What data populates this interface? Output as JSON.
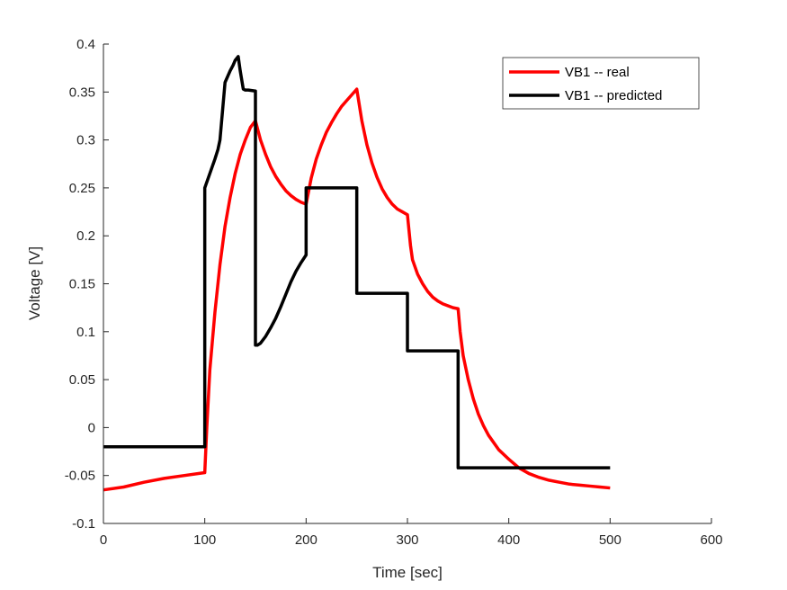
{
  "chart_data": {
    "type": "line",
    "xlabel": "Time [sec]",
    "ylabel": "Voltage [V]",
    "xlim": [
      0,
      600
    ],
    "ylim": [
      -0.1,
      0.4
    ],
    "xticks": [
      0,
      100,
      200,
      300,
      400,
      500,
      600
    ],
    "xtick_labels": [
      "0",
      "100",
      "200",
      "300",
      "400",
      "500",
      "600"
    ],
    "yticks": [
      -0.1,
      -0.05,
      0,
      0.05,
      0.1,
      0.15,
      0.2,
      0.25,
      0.3,
      0.35,
      0.4
    ],
    "ytick_labels": [
      "-0.1",
      "-0.05",
      "0",
      "0.05",
      "0.1",
      "0.15",
      "0.2",
      "0.25",
      "0.3",
      "0.35",
      "0.4"
    ],
    "grid": false,
    "legend_position": "top-right",
    "series": [
      {
        "name": "VB1 -- real",
        "color": "#ff0000",
        "x": [
          0,
          20,
          40,
          60,
          80,
          100,
          102,
          105,
          110,
          115,
          120,
          125,
          130,
          135,
          140,
          145,
          150,
          155,
          160,
          165,
          170,
          175,
          180,
          185,
          190,
          195,
          200,
          205,
          210,
          215,
          220,
          225,
          230,
          235,
          240,
          245,
          250,
          255,
          260,
          265,
          270,
          275,
          280,
          285,
          290,
          295,
          300,
          303,
          305,
          310,
          315,
          320,
          325,
          330,
          335,
          340,
          345,
          350,
          352,
          355,
          360,
          365,
          370,
          375,
          380,
          390,
          400,
          410,
          420,
          430,
          440,
          450,
          460,
          470,
          480,
          490,
          500
        ],
        "y": [
          -0.065,
          -0.062,
          -0.057,
          -0.053,
          -0.05,
          -0.047,
          0.0,
          0.06,
          0.12,
          0.17,
          0.21,
          0.24,
          0.265,
          0.285,
          0.3,
          0.313,
          0.32,
          0.3,
          0.285,
          0.272,
          0.262,
          0.254,
          0.247,
          0.242,
          0.238,
          0.235,
          0.233,
          0.26,
          0.28,
          0.295,
          0.308,
          0.318,
          0.327,
          0.335,
          0.341,
          0.347,
          0.353,
          0.32,
          0.295,
          0.276,
          0.261,
          0.249,
          0.24,
          0.233,
          0.228,
          0.225,
          0.222,
          0.19,
          0.175,
          0.16,
          0.15,
          0.142,
          0.136,
          0.132,
          0.129,
          0.127,
          0.125,
          0.124,
          0.1,
          0.075,
          0.05,
          0.03,
          0.014,
          0.002,
          -0.008,
          -0.023,
          -0.033,
          -0.042,
          -0.048,
          -0.052,
          -0.055,
          -0.057,
          -0.059,
          -0.06,
          -0.061,
          -0.062,
          -0.063
        ]
      },
      {
        "name": "VB1 -- predicted",
        "color": "#000000",
        "x": [
          0,
          100,
          100,
          105,
          110,
          113,
          115,
          120,
          125,
          128,
          130,
          133,
          135,
          138,
          140,
          143,
          150,
          150,
          152,
          155,
          160,
          165,
          170,
          175,
          180,
          185,
          190,
          195,
          200,
          200,
          250,
          250,
          300,
          300,
          350,
          350,
          500
        ],
        "y": [
          -0.02,
          -0.02,
          0.25,
          0.265,
          0.28,
          0.29,
          0.3,
          0.36,
          0.372,
          0.378,
          0.383,
          0.387,
          0.372,
          0.353,
          0.352,
          0.352,
          0.351,
          0.086,
          0.086,
          0.088,
          0.095,
          0.104,
          0.114,
          0.126,
          0.139,
          0.152,
          0.163,
          0.172,
          0.18,
          0.25,
          0.25,
          0.14,
          0.14,
          0.08,
          0.08,
          -0.042,
          -0.042
        ]
      }
    ]
  }
}
